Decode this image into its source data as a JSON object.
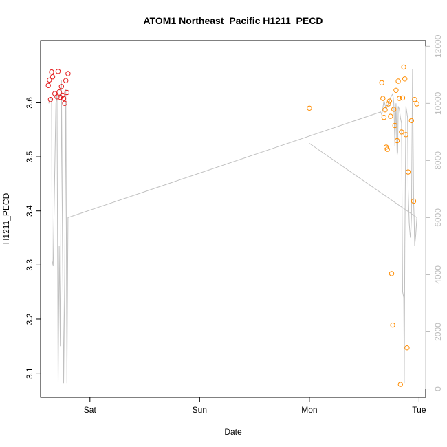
{
  "chart_data": {
    "type": "scatter",
    "title": "ATOM1 Northeast_Pacific H1211_PECD",
    "xlabel": "Date",
    "ylabel": "H1211_PECD",
    "x_ticks": [
      "Sat",
      "Sun",
      "Mon",
      "Tue"
    ],
    "x_tick_days": [
      1,
      2,
      3,
      4
    ],
    "xlim": [
      0.55,
      4.06
    ],
    "ylim": [
      3.055,
      3.715
    ],
    "y_ticks": [
      3.1,
      3.2,
      3.3,
      3.4,
      3.5,
      3.6
    ],
    "y2lim": [
      -300,
      12200
    ],
    "y2_ticks": [
      0,
      2000,
      4000,
      6000,
      8000,
      10000,
      12000
    ],
    "grid": false,
    "legend": "none",
    "colors": {
      "series1": "#e41a1c",
      "series2": "#ff8c00",
      "line": "#c0c0c0",
      "axis": "#000000",
      "right_axis": "#bdbdbd"
    },
    "series": [
      {
        "color": "#e41a1c",
        "points": [
          [
            0.62,
            3.632
          ],
          [
            0.63,
            3.642
          ],
          [
            0.64,
            3.606
          ],
          [
            0.65,
            3.657
          ],
          [
            0.66,
            3.648
          ],
          [
            0.68,
            3.617
          ],
          [
            0.7,
            3.611
          ],
          [
            0.71,
            3.658
          ],
          [
            0.72,
            3.62
          ],
          [
            0.73,
            3.61
          ],
          [
            0.74,
            3.63
          ],
          [
            0.75,
            3.614
          ],
          [
            0.76,
            3.608
          ],
          [
            0.77,
            3.599
          ],
          [
            0.78,
            3.641
          ],
          [
            0.79,
            3.619
          ],
          [
            0.8,
            3.654
          ]
        ]
      },
      {
        "color": "#ff8c00",
        "points": [
          [
            3.0,
            3.59
          ],
          [
            3.66,
            3.637
          ],
          [
            3.67,
            3.608
          ],
          [
            3.68,
            3.573
          ],
          [
            3.69,
            3.587
          ],
          [
            3.7,
            3.518
          ],
          [
            3.71,
            3.514
          ],
          [
            3.72,
            3.598
          ],
          [
            3.73,
            3.603
          ],
          [
            3.74,
            3.575
          ],
          [
            3.75,
            3.284
          ],
          [
            3.76,
            3.189
          ],
          [
            3.77,
            3.588
          ],
          [
            3.78,
            3.558
          ],
          [
            3.79,
            3.623
          ],
          [
            3.8,
            3.53
          ],
          [
            3.81,
            3.64
          ],
          [
            3.82,
            3.608
          ],
          [
            3.83,
            3.079
          ],
          [
            3.84,
            3.546
          ],
          [
            3.85,
            3.609
          ],
          [
            3.86,
            3.666
          ],
          [
            3.87,
            3.644
          ],
          [
            3.88,
            3.541
          ],
          [
            3.89,
            3.147
          ],
          [
            3.9,
            3.472
          ],
          [
            3.93,
            3.567
          ],
          [
            3.95,
            3.418
          ],
          [
            3.96,
            3.606
          ],
          [
            3.98,
            3.598
          ]
        ]
      }
    ],
    "line_series": {
      "color": "#c0c0c0",
      "axis": "right",
      "segments": [
        [
          [
            0.625,
            10000
          ],
          [
            0.64,
            10200
          ],
          [
            0.65,
            10200
          ],
          [
            0.655,
            4500
          ],
          [
            0.665,
            4300
          ],
          [
            0.69,
            10000
          ],
          [
            0.7,
            10300
          ],
          [
            0.71,
            200
          ],
          [
            0.72,
            5000
          ],
          [
            0.73,
            1500
          ],
          [
            0.74,
            10800
          ],
          [
            0.75,
            5000
          ],
          [
            0.76,
            200
          ],
          [
            0.77,
            4000
          ],
          [
            0.78,
            10500
          ],
          [
            0.79,
            200
          ],
          [
            0.8,
            6000
          ],
          [
            3.65,
            9700
          ],
          [
            3.66,
            9600
          ],
          [
            3.68,
            10100
          ],
          [
            3.7,
            9800
          ],
          [
            3.72,
            10000
          ],
          [
            3.73,
            10100
          ],
          [
            3.74,
            10200
          ],
          [
            3.755,
            10300
          ],
          [
            3.76,
            10350
          ],
          [
            3.77,
            10000
          ],
          [
            3.78,
            8500
          ],
          [
            3.79,
            10000
          ],
          [
            3.8,
            8200
          ],
          [
            3.805,
            8300
          ],
          [
            3.81,
            9900
          ],
          [
            3.82,
            9800
          ],
          [
            3.83,
            9500
          ],
          [
            3.84,
            9300
          ],
          [
            3.85,
            3400
          ],
          [
            3.86,
            3200
          ],
          [
            3.865,
            200
          ],
          [
            3.87,
            5000
          ],
          [
            3.88,
            9900
          ],
          [
            3.895,
            9500
          ],
          [
            3.9,
            7000
          ],
          [
            3.91,
            5800
          ],
          [
            3.92,
            5300
          ],
          [
            3.925,
            5500
          ],
          [
            3.93,
            6000
          ],
          [
            3.94,
            11200
          ],
          [
            3.95,
            6500
          ],
          [
            3.955,
            6000
          ],
          [
            3.96,
            5000
          ],
          [
            3.97,
            5400
          ],
          [
            3.98,
            6000
          ]
        ],
        [
          [
            3.0,
            8600
          ],
          [
            3.98,
            6000
          ]
        ]
      ]
    }
  }
}
